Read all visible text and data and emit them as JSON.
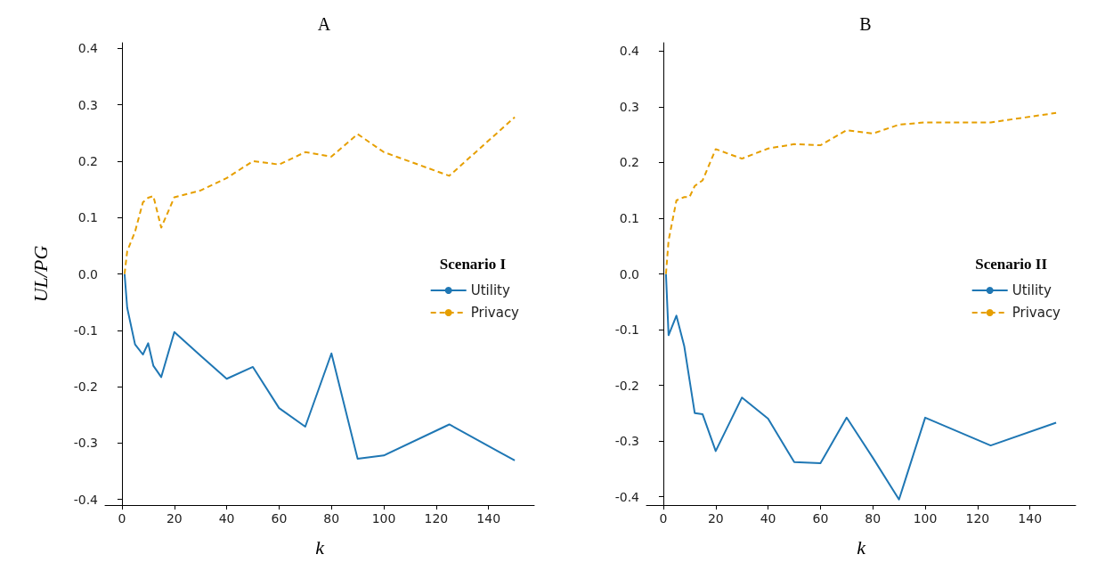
{
  "chart_data": [
    {
      "type": "line",
      "title": "A",
      "xlabel": "k",
      "ylabel": "UL/PG",
      "legend_title": "Scenario I",
      "legend": "right",
      "x": [
        1,
        2,
        5,
        8,
        10,
        12,
        15,
        20,
        30,
        40,
        50,
        60,
        70,
        80,
        90,
        100,
        125,
        150
      ],
      "series": [
        {
          "name": "Utility",
          "color": "#1f77b4",
          "line_style": "solid",
          "values": [
            0,
            -0.06,
            -0.125,
            -0.143,
            -0.123,
            -0.163,
            -0.183,
            -0.103,
            -0.145,
            -0.186,
            -0.165,
            -0.238,
            -0.271,
            -0.141,
            -0.328,
            -0.322,
            -0.267,
            -0.331
          ]
        },
        {
          "name": "Privacy",
          "color": "#e69f00",
          "line_style": "dashed",
          "values": [
            0,
            0.04,
            0.075,
            0.127,
            0.135,
            0.138,
            0.082,
            0.136,
            0.148,
            0.17,
            0.2,
            0.194,
            0.216,
            0.208,
            0.248,
            0.216,
            0.174,
            0.278
          ]
        }
      ],
      "xlim": [
        -6.45,
        157.45
      ],
      "xticks": [
        0,
        20,
        40,
        60,
        80,
        100,
        120,
        140
      ],
      "ylim": [
        -0.41,
        0.41
      ],
      "yticks": [
        {
          "value": -0.4,
          "label": "-0.4"
        },
        {
          "value": -0.3,
          "label": "-0.3"
        },
        {
          "value": -0.2,
          "label": "-0.2"
        },
        {
          "value": -0.1,
          "label": "-0.1"
        },
        {
          "value": 0,
          "label": "0.0"
        },
        {
          "value": 0.1,
          "label": "0.1"
        },
        {
          "value": 0.2,
          "label": "0.2"
        },
        {
          "value": 0.3,
          "label": "0.3"
        },
        {
          "value": 0.4,
          "label": "0.4"
        }
      ]
    },
    {
      "type": "line",
      "title": "B",
      "xlabel": "k",
      "legend_title": "Scenario II",
      "legend": "right",
      "x": [
        1,
        2,
        5,
        8,
        10,
        12,
        15,
        20,
        30,
        40,
        50,
        60,
        70,
        80,
        90,
        100,
        125,
        150
      ],
      "series": [
        {
          "name": "Utility",
          "color": "#1f77b4",
          "line_style": "solid",
          "values": [
            0,
            -0.11,
            -0.075,
            -0.13,
            -0.19,
            -0.25,
            -0.252,
            -0.318,
            -0.222,
            -0.26,
            -0.338,
            -0.34,
            -0.258,
            -0.33,
            -0.405,
            -0.258,
            -0.308,
            -0.267
          ]
        },
        {
          "name": "Privacy",
          "color": "#e69f00",
          "line_style": "dashed",
          "values": [
            0,
            0.06,
            0.132,
            0.138,
            0.138,
            0.158,
            0.168,
            0.224,
            0.207,
            0.225,
            0.233,
            0.231,
            0.258,
            0.252,
            0.268,
            0.272,
            0.272,
            0.289
          ]
        }
      ],
      "xlim": [
        -6.45,
        157.45
      ],
      "xticks": [
        0,
        20,
        40,
        60,
        80,
        100,
        120,
        140
      ],
      "ylim": [
        -0.415,
        0.415
      ],
      "yticks": [
        {
          "value": -0.4,
          "label": "-0.4"
        },
        {
          "value": -0.3,
          "label": "-0.3"
        },
        {
          "value": -0.2,
          "label": "-0.2"
        },
        {
          "value": -0.1,
          "label": "-0.1"
        },
        {
          "value": 0,
          "label": "0.0"
        },
        {
          "value": 0.1,
          "label": "0.1"
        },
        {
          "value": 0.2,
          "label": "0.2"
        },
        {
          "value": 0.3,
          "label": "0.3"
        },
        {
          "value": 0.4,
          "label": "0.4"
        }
      ]
    }
  ]
}
